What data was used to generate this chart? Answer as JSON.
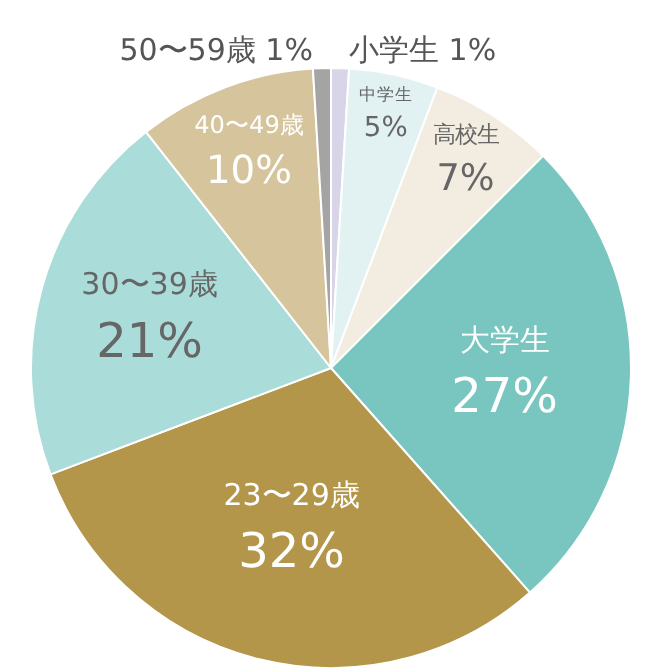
{
  "chart_data": {
    "type": "pie",
    "categories": [
      "小学生",
      "中学生",
      "高校生",
      "大学生",
      "23〜29歳",
      "30〜39歳",
      "40〜49歳",
      "50〜59歳"
    ],
    "values": [
      1,
      5,
      7,
      27,
      32,
      21,
      10,
      1
    ],
    "value_labels": [
      "1%",
      "5%",
      "7%",
      "27%",
      "32%",
      "21%",
      "10%",
      "1%"
    ],
    "colors": [
      "#d9d5e8",
      "#e2f2f2",
      "#f2ede0",
      "#78c6bf",
      "#b3964a",
      "#aadcd9",
      "#d6c59c",
      "#a4a4a4"
    ]
  }
}
